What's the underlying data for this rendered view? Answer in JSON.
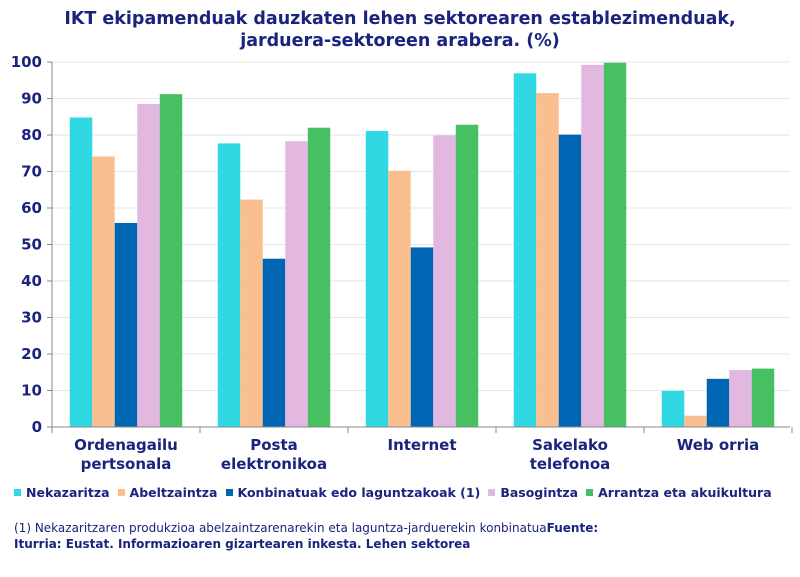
{
  "chart_data": {
    "type": "bar",
    "title_lines": [
      "IKT ekipamenduak dauzkaten lehen sektorearen establezimenduak,",
      "jarduera-sektoreen arabera. (%)"
    ],
    "categories": [
      [
        "Ordenagailu",
        "pertsonala"
      ],
      [
        "Posta",
        "elektronikoa"
      ],
      [
        "Internet"
      ],
      [
        "Sakelako",
        "telefonoa"
      ],
      [
        "Web orria"
      ]
    ],
    "series": [
      {
        "name": "Nekazaritza",
        "color": "#2fd8e3",
        "values": [
          84.8,
          77.7,
          81.1,
          96.9,
          9.9
        ]
      },
      {
        "name": "Abeltzaintza",
        "color": "#f9bf8f",
        "values": [
          74.1,
          62.3,
          70.2,
          91.5,
          3.1
        ]
      },
      {
        "name": "Konbinatuak edo laguntzakoak (1)",
        "color": "#0066b3",
        "values": [
          55.9,
          46.1,
          49.2,
          80.1,
          13.2
        ]
      },
      {
        "name": "Basogintza",
        "color": "#e2b8e0",
        "values": [
          88.5,
          78.3,
          79.9,
          99.2,
          15.6
        ]
      },
      {
        "name": "Arrantza eta akuikultura",
        "color": "#47c061",
        "values": [
          91.2,
          82.0,
          82.8,
          99.8,
          16.0
        ]
      }
    ],
    "yticks": [
      0,
      10,
      20,
      30,
      40,
      50,
      60,
      70,
      80,
      90,
      100
    ],
    "ylim": [
      0,
      100
    ],
    "grid": true,
    "legend_position": "bottom"
  },
  "colors": {
    "text": "#1a237e",
    "axis": "#888888",
    "grid": "#e6e6e6"
  },
  "footnote": {
    "note": "(1)  Nekazaritzaren produkzioa abelzaintzarenarekin eta laguntza-jarduerekin konbinatua",
    "source_label": "Fuente:",
    "source_text": "Iturria: Eustat. Informazioaren gizartearen inkesta. Lehen sektorea"
  }
}
